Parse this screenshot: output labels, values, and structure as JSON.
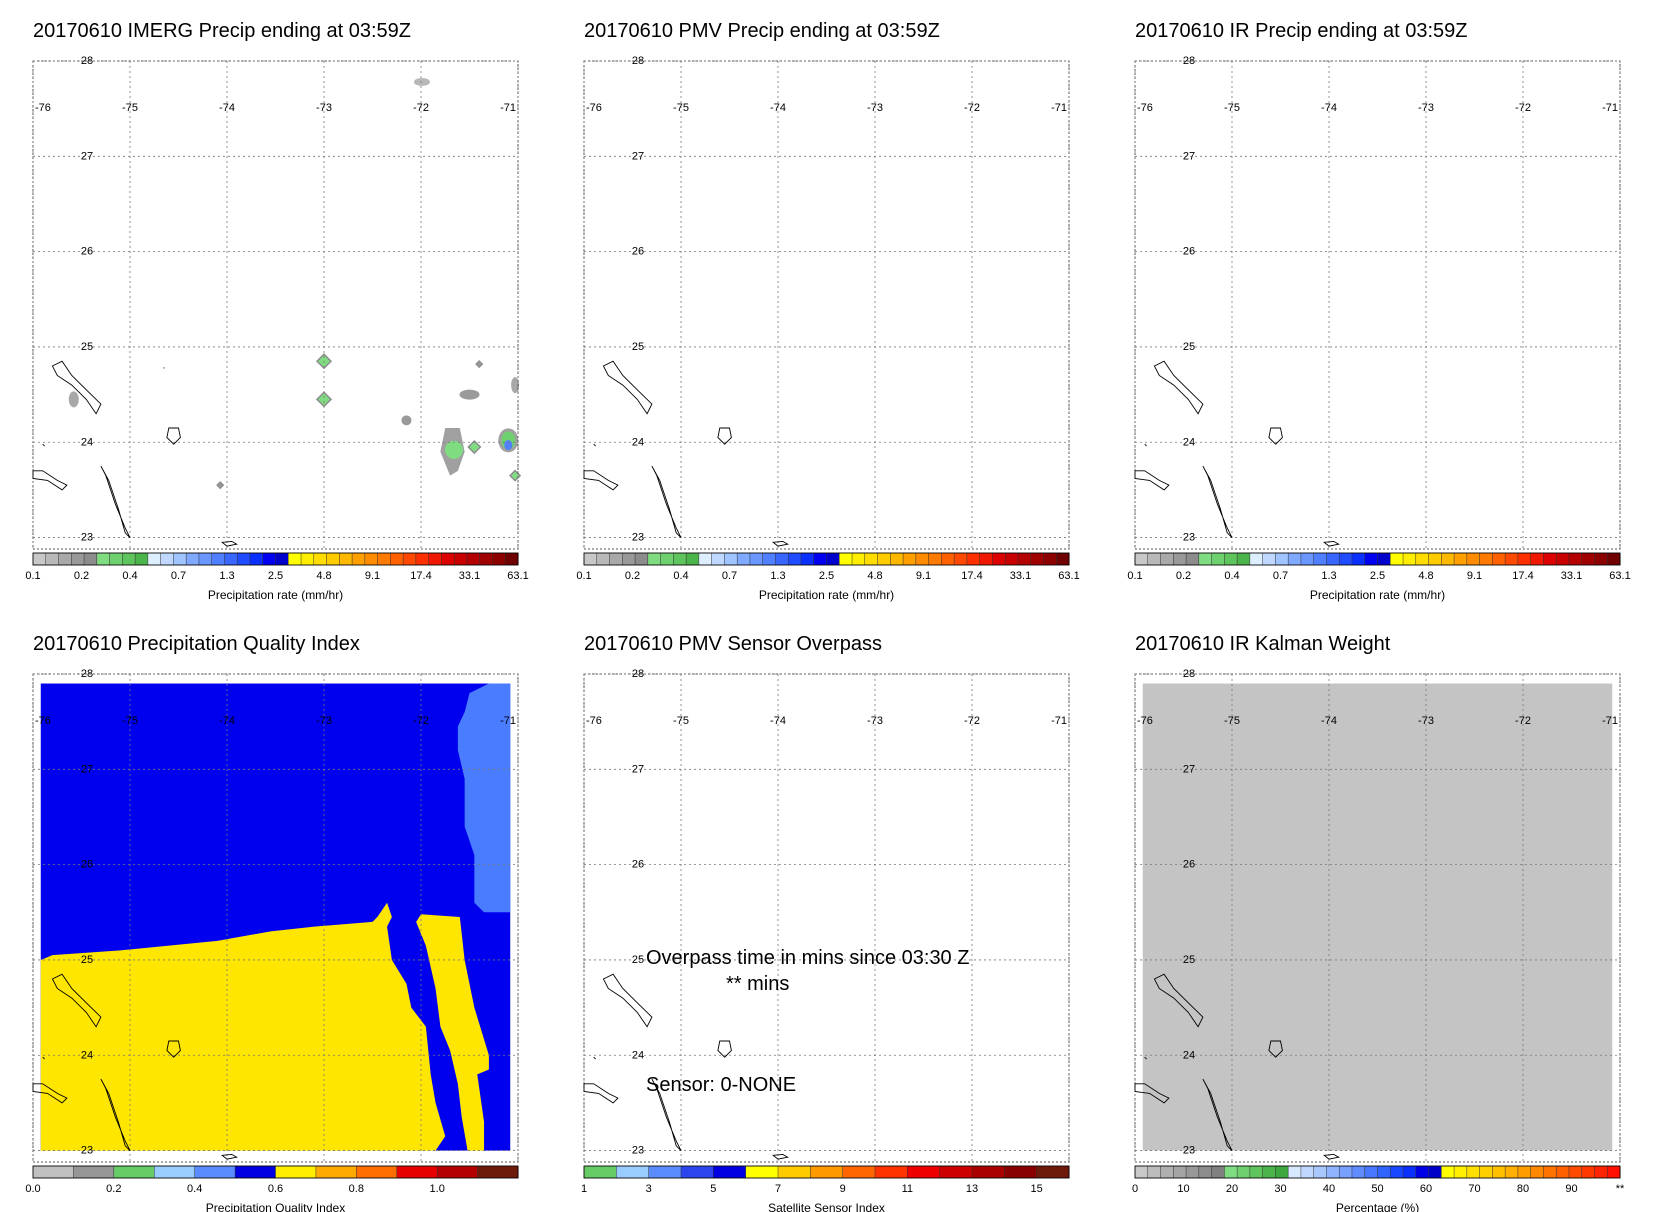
{
  "colors": {
    "precip_scale": [
      "#c8c8c8",
      "#b9b9b9",
      "#a9a9a9",
      "#999999",
      "#8c8c8c",
      "#7fdc80",
      "#6fd06f",
      "#5ec45e",
      "#4bb54b",
      "#ddeeff",
      "#c0d8ff",
      "#a0c4ff",
      "#80aaff",
      "#6a96ff",
      "#5080ff",
      "#3866ff",
      "#1f4cff",
      "#0a30ff",
      "#0000f0",
      "#0000cc",
      "#ffff00",
      "#ffee00",
      "#ffdd00",
      "#ffcc00",
      "#ffb800",
      "#ffa000",
      "#ff8c00",
      "#ff7a00",
      "#ff6000",
      "#ff4800",
      "#ff3000",
      "#f01800",
      "#dd0000",
      "#c80000",
      "#b40000",
      "#a00000",
      "#8c0000",
      "#700000"
    ],
    "pqi_scale": [
      "#c0c0c0",
      "#969696",
      "#66cc66",
      "#99ccff",
      "#5a8cff",
      "#0000e0",
      "#ffee00",
      "#ffaa00",
      "#ff6e00",
      "#e60000",
      "#b40000",
      "#6e1a0a"
    ],
    "sensor_scale": [
      "#66cc66",
      "#99ccff",
      "#5a8cff",
      "#2c44ee",
      "#0000e0",
      "#ffff00",
      "#ffcc00",
      "#ff9900",
      "#ff6600",
      "#ff3300",
      "#ee0000",
      "#cc0000",
      "#aa0000",
      "#880000",
      "#6e1a0a"
    ],
    "pct_scale": [
      "#c8c8c8",
      "#bcbcbc",
      "#b0b0b0",
      "#a4a4a4",
      "#989898",
      "#8c8c8c",
      "#808080",
      "#7fdc80",
      "#6fd06f",
      "#5ec45e",
      "#4bb54b",
      "#3ea83e",
      "#d8e8ff",
      "#c0d8ff",
      "#a8c8ff",
      "#90b4ff",
      "#78a0ff",
      "#608cff",
      "#4878ff",
      "#3064ff",
      "#1848ff",
      "#0a30ff",
      "#0000e6",
      "#0000c8",
      "#ffff00",
      "#fff000",
      "#ffe000",
      "#ffd000",
      "#ffc000",
      "#ffb000",
      "#ff9c00",
      "#ff8800",
      "#ff7400",
      "#ff6000",
      "#ff4c00",
      "#ff3800",
      "#ff2400",
      "#ff1000"
    ],
    "pqi_blue": "#0000ee",
    "pqi_lightblue": "#4a7cff",
    "pqi_yellow": "#ffe600",
    "kalman_gray": "#c4c4c4"
  },
  "map": {
    "lon_ticks": [
      "-76",
      "-75",
      "-74",
      "-73",
      "-72",
      "-71"
    ],
    "lat_ticks": [
      "28",
      "27",
      "26",
      "25",
      "24",
      "23"
    ]
  },
  "panels": [
    {
      "id": "imerg",
      "title": "20170610 IMERG Precip ending at 03:59Z",
      "colorbar": "precip",
      "cb_labels": [
        "0.1",
        "0.2",
        "0.4",
        "0.7",
        "1.3",
        "2.5",
        "4.8",
        "9.1",
        "17.4",
        "33.1",
        "63.1"
      ],
      "cb_title": "Precipitation rate (mm/hr)"
    },
    {
      "id": "pmv",
      "title": "20170610 PMV Precip ending at 03:59Z",
      "colorbar": "precip",
      "cb_labels": [
        "0.1",
        "0.2",
        "0.4",
        "0.7",
        "1.3",
        "2.5",
        "4.8",
        "9.1",
        "17.4",
        "33.1",
        "63.1"
      ],
      "cb_title": "Precipitation rate (mm/hr)"
    },
    {
      "id": "ir",
      "title": "20170610 IR Precip ending at 03:59Z",
      "colorbar": "precip",
      "cb_labels": [
        "0.1",
        "0.2",
        "0.4",
        "0.7",
        "1.3",
        "2.5",
        "4.8",
        "9.1",
        "17.4",
        "33.1",
        "63.1"
      ],
      "cb_title": "Precipitation rate (mm/hr)"
    },
    {
      "id": "pqi",
      "title": "20170610 Precipitation Quality Index",
      "colorbar": "pqi",
      "cb_labels": [
        "0.0",
        "0.2",
        "0.4",
        "0.6",
        "0.8",
        "1.0"
      ],
      "cb_title": "Precipitation Quality Index"
    },
    {
      "id": "sensor",
      "title": "20170610 PMV Sensor Overpass",
      "colorbar": "sensor",
      "cb_labels": [
        "1",
        "3",
        "5",
        "7",
        "9",
        "11",
        "13",
        "15"
      ],
      "cb_title": "Satellite Sensor Index",
      "overlay": {
        "line1": "Overpass time in mins since 03:30 Z",
        "line2": "** mins",
        "line3": "Sensor:   0-NONE"
      }
    },
    {
      "id": "kalman",
      "title": "20170610 IR Kalman Weight",
      "colorbar": "pct",
      "cb_labels": [
        "0",
        "10",
        "20",
        "30",
        "40",
        "50",
        "60",
        "70",
        "80",
        "90",
        "**"
      ],
      "cb_title": "Percentage (%)"
    }
  ]
}
